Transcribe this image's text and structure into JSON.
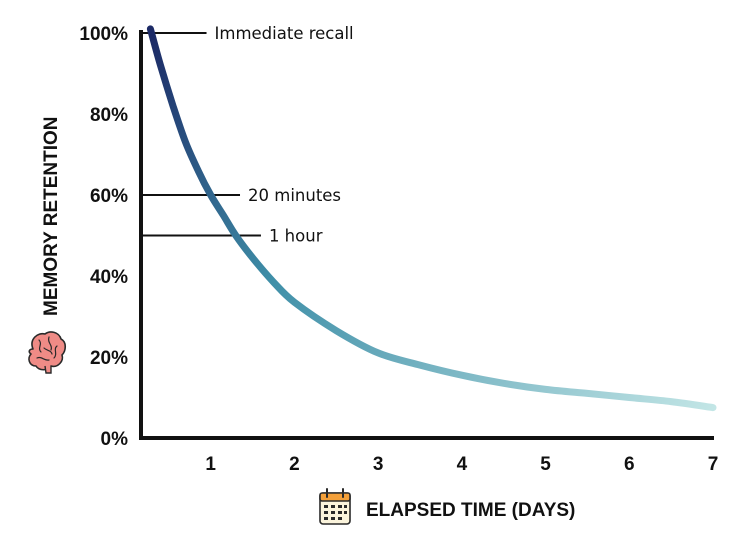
{
  "chart_data": {
    "type": "line",
    "title": "",
    "xlabel": "ELAPSED TIME (DAYS)",
    "ylabel": "MEMORY RETENTION",
    "xlim": [
      0,
      7
    ],
    "ylim": [
      0,
      100
    ],
    "x_ticks": [
      "1",
      "2",
      "3",
      "4",
      "5",
      "6",
      "7"
    ],
    "y_ticks": [
      "0%",
      "20%",
      "40%",
      "60%",
      "80%",
      "100%"
    ],
    "grid": false,
    "series": [
      {
        "x": [
          0.28,
          0.4,
          0.55,
          0.7,
          0.85,
          1.0,
          1.15,
          1.3,
          1.5,
          1.75,
          2.0,
          2.5,
          3.0,
          3.5,
          4.0,
          4.5,
          5.0,
          5.5,
          6.0,
          6.5,
          7.0
        ],
        "y": [
          101,
          92,
          82,
          73,
          66,
          60,
          55,
          50,
          44.5,
          38.5,
          33.5,
          26.5,
          21,
          18,
          15.5,
          13.5,
          12,
          11,
          10,
          9,
          7.5
        ],
        "color_start": "#1c2a66",
        "color_mid": "#3f8fa8",
        "color_end": "#c3e6e6"
      }
    ],
    "annotations": [
      {
        "text": "Immediate recall",
        "y": 100,
        "line_x_end": 0.95
      },
      {
        "text": "20 minutes",
        "y": 60,
        "line_x_end": 1.35
      },
      {
        "text": "1 hour",
        "y": 50,
        "line_x_end": 1.6
      }
    ],
    "icons": {
      "y_axis": "brain-icon",
      "x_axis": "calendar-icon"
    }
  }
}
